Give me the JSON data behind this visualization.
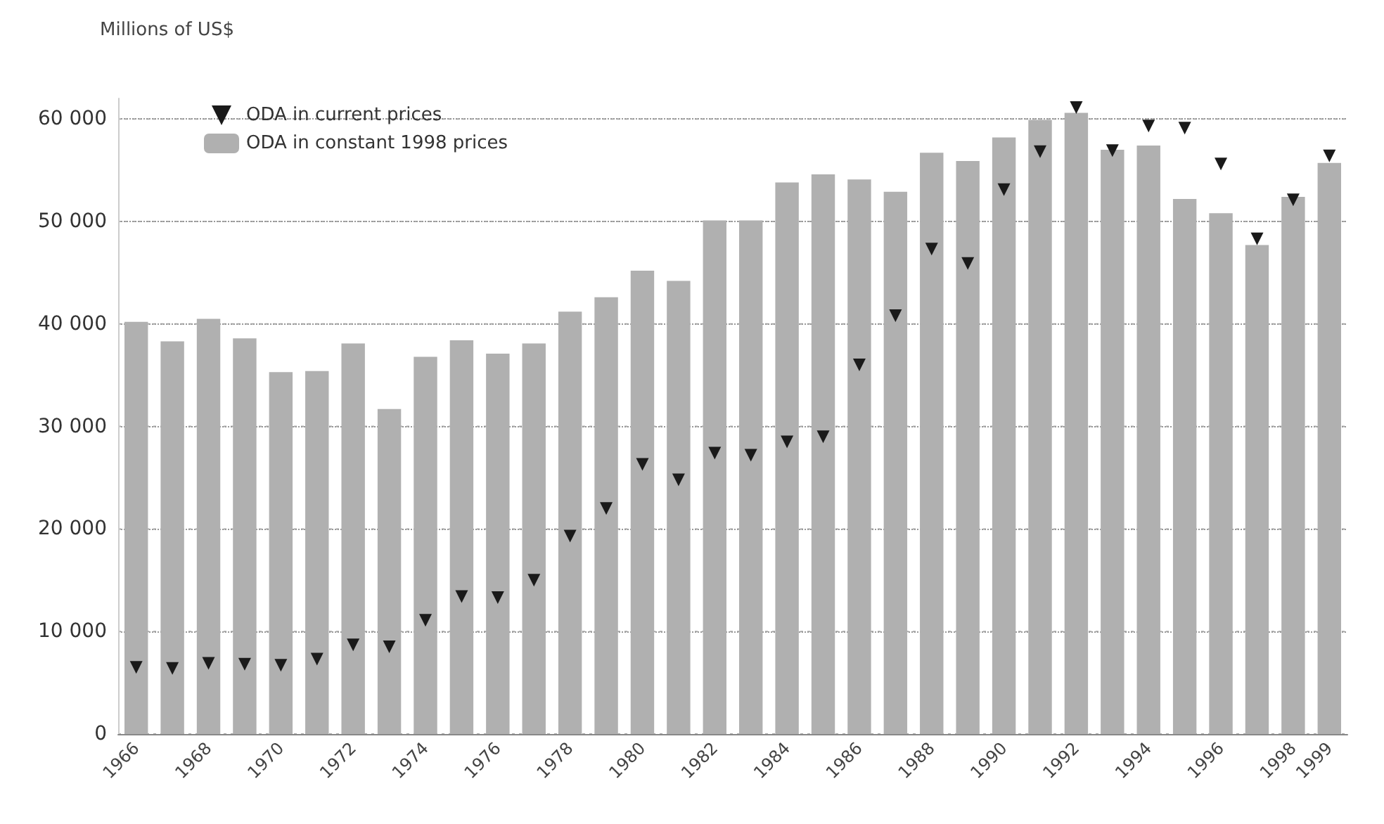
{
  "chart_data": {
    "type": "bar",
    "ylabel": "Millions of US$",
    "categories": [
      "1966",
      null,
      "1968",
      null,
      "1970",
      null,
      "1972",
      null,
      "1974",
      null,
      "1976",
      null,
      "1978",
      null,
      "1980",
      null,
      "1982",
      null,
      "1984",
      null,
      "1986",
      null,
      "1988",
      null,
      "1990",
      null,
      "1992",
      null,
      "1994",
      null,
      "1996",
      null,
      "1998",
      "1999"
    ],
    "series": [
      {
        "name": "ODA in current prices",
        "type": "scatter",
        "color": "#1a1a1a",
        "marker": "triangle",
        "values": [
          6500,
          6400,
          6900,
          6800,
          6700,
          7300,
          8700,
          8500,
          11100,
          13400,
          13300,
          15000,
          19300,
          22000,
          26300,
          24800,
          27400,
          27200,
          28500,
          29000,
          36000,
          40800,
          47300,
          45900,
          53100,
          56800,
          61100,
          56900,
          59300,
          59100,
          55600,
          48300,
          52100,
          56400
        ]
      },
      {
        "name": "ODA in constant 1998 prices",
        "color": "#b0b0b0",
        "values": [
          40200,
          38300,
          40500,
          38600,
          35300,
          35400,
          38100,
          31700,
          36800,
          38400,
          37100,
          38100,
          41200,
          42600,
          45200,
          44200,
          50100,
          50100,
          53800,
          54600,
          54100,
          52900,
          56700,
          55900,
          58200,
          59900,
          60600,
          57000,
          57400,
          52200,
          50800,
          47700,
          52400,
          55700
        ]
      }
    ],
    "ylim": [
      0,
      62000
    ],
    "yticks": [
      {
        "value": 0,
        "label": "0"
      },
      {
        "value": 10000,
        "label": "10 000"
      },
      {
        "value": 20000,
        "label": "20 000"
      },
      {
        "value": 30000,
        "label": "30 000"
      },
      {
        "value": 40000,
        "label": "40 000"
      },
      {
        "value": 50000,
        "label": "50 000"
      },
      {
        "value": 60000,
        "label": "60 000"
      }
    ],
    "grid": "y",
    "legend": "top left"
  }
}
